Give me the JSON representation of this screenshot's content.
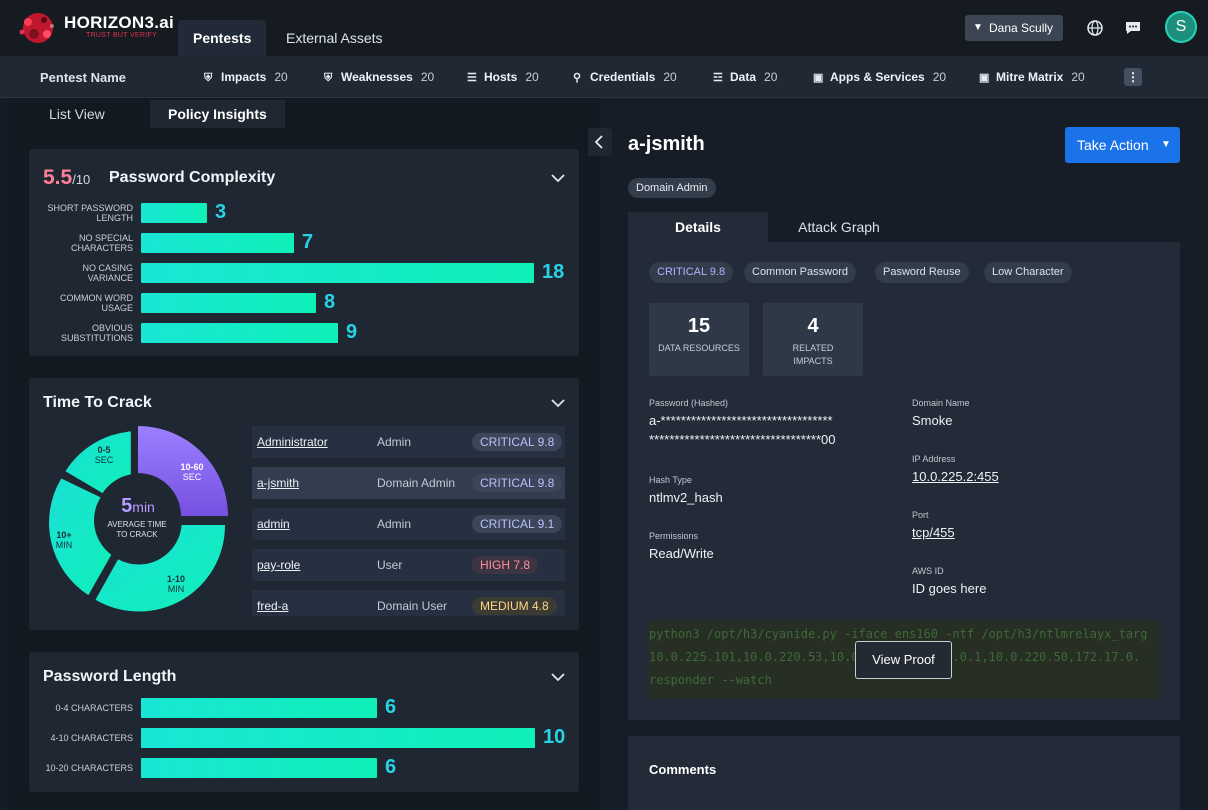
{
  "brand": {
    "name": "HORIZON3.ai",
    "tagline": "TRUST BUT VERIFY"
  },
  "main_tabs": [
    {
      "label": "Pentests",
      "active": true
    },
    {
      "label": "External Assets",
      "active": false
    }
  ],
  "user_menu": {
    "label": "Dana Scully",
    "avatar_initial": "S"
  },
  "subnav": {
    "title": "Pentest Name",
    "items": [
      {
        "label": "Impacts",
        "count": "20",
        "icon": "shield-icon"
      },
      {
        "label": "Weaknesses",
        "count": "20",
        "icon": "shield-icon"
      },
      {
        "label": "Hosts",
        "count": "20",
        "icon": "server-icon"
      },
      {
        "label": "Credentials",
        "count": "20",
        "icon": "key-icon"
      },
      {
        "label": "Data",
        "count": "20",
        "icon": "database-icon"
      },
      {
        "label": "Apps & Services",
        "count": "20",
        "icon": "monitor-icon"
      },
      {
        "label": "Mitre Matrix",
        "count": "20",
        "icon": "monitor-icon"
      }
    ]
  },
  "view_tabs": [
    {
      "label": "List View",
      "active": false
    },
    {
      "label": "Policy Insights",
      "active": true
    }
  ],
  "complexity": {
    "score": "5.5",
    "score_max": "/10",
    "title": "Password Complexity",
    "max": 18,
    "bars": [
      {
        "label": "SHORT PASSWORD LENGTH",
        "value": 3
      },
      {
        "label": "NO SPECIAL CHARACTERS",
        "value": 7
      },
      {
        "label": "NO CASING VARIANCE",
        "value": 18
      },
      {
        "label": "COMMON WORD USAGE",
        "value": 8
      },
      {
        "label": "OBVIOUS SUBSTITUTIONS",
        "value": 9
      }
    ]
  },
  "time_to_crack": {
    "title": "Time To Crack",
    "center_value": "5",
    "center_unit": "min",
    "center_label": "AVERAGE TIME TO CRACK",
    "segments": [
      {
        "label1": "0-5",
        "label2": "SEC"
      },
      {
        "label1": "10-60",
        "label2": "SEC"
      },
      {
        "label1": "1-10",
        "label2": "MIN"
      },
      {
        "label1": "10+",
        "label2": "MIN"
      }
    ],
    "rows": [
      {
        "name": "Administrator",
        "role": "Admin",
        "severity": "CRITICAL 9.8",
        "level": "crit"
      },
      {
        "name": "a-jsmith",
        "role": "Domain Admin",
        "severity": "CRITICAL 9.8",
        "level": "crit"
      },
      {
        "name": "admin",
        "role": "Admin",
        "severity": "CRITICAL 9.1",
        "level": "crit"
      },
      {
        "name": "pay-role",
        "role": "User",
        "severity": "HIGH 7.8",
        "level": "high"
      },
      {
        "name": "fred-a",
        "role": "Domain User",
        "severity": "MEDIUM 4.8",
        "level": "med"
      }
    ]
  },
  "password_length": {
    "title": "Password Length",
    "max": 10,
    "bars": [
      {
        "label": "0-4 CHARACTERS",
        "value": 6
      },
      {
        "label": "4-10 CHARACTERS",
        "value": 10
      },
      {
        "label": "10-20 CHARACTERS",
        "value": 6
      }
    ]
  },
  "detail": {
    "title": "a-jsmith",
    "role_chip": "Domain Admin",
    "take_action": "Take Action",
    "tabs": [
      {
        "label": "Details",
        "active": true
      },
      {
        "label": "Attack Graph",
        "active": false
      }
    ],
    "tags": [
      "CRITICAL 9.8",
      "Common Password",
      "Pasword Reuse",
      "Low Character"
    ],
    "stats": [
      {
        "value": "15",
        "label": "DATA RESOURCES"
      },
      {
        "value": "4",
        "label": "RELATED IMPACTS"
      }
    ],
    "fields_left": [
      {
        "label": "Password (Hashed)",
        "value_line1": "a-**********************************",
        "value_line2": "**********************************00"
      },
      {
        "label": "Hash Type",
        "value": "ntlmv2_hash"
      },
      {
        "label": "Permissions",
        "value": "Read/Write"
      }
    ],
    "fields_right": [
      {
        "label": "Domain Name",
        "value": "Smoke",
        "link": false
      },
      {
        "label": "IP Address",
        "value": "10.0.225.2:455",
        "link": true
      },
      {
        "label": "Port",
        "value": "tcp/455",
        "link": true
      },
      {
        "label": "AWS ID",
        "value": "ID goes here",
        "link": false
      }
    ],
    "proof_lines": [
      "python3 /opt/h3/cyanide.py -iface ens160 -ntf /opt/h3/ntlmrelayx_targ",
      "10.0.225.101,10.0.220.53,10.0.220.221,10.0.0.1,10.0.220.50,172.17.0.",
      "responder --watch"
    ],
    "view_proof": "View Proof",
    "comments_title": "Comments"
  }
}
